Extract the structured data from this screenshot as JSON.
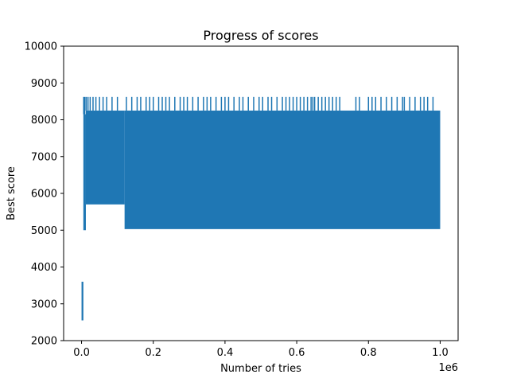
{
  "chart_data": {
    "type": "line",
    "title": "Progress of scores",
    "xlabel": "Number of tries",
    "ylabel": "Best score",
    "x_offset_label": "1e6",
    "xlim": [
      -0.05,
      1.05
    ],
    "ylim": [
      2000,
      10000
    ],
    "x_ticks": [
      0.0,
      0.2,
      0.4,
      0.6,
      0.8,
      1.0
    ],
    "x_tick_labels": [
      "0.0",
      "0.2",
      "0.4",
      "0.6",
      "0.8",
      "1.0"
    ],
    "y_ticks": [
      2000,
      3000,
      4000,
      5000,
      6000,
      7000,
      8000,
      9000,
      10000
    ],
    "y_tick_labels": [
      "2000",
      "3000",
      "4000",
      "5000",
      "6000",
      "7000",
      "8000",
      "9000",
      "10000"
    ],
    "grid": false,
    "series": [
      {
        "color": "#1f77b4",
        "envelope": [
          {
            "x0": 0.0,
            "x1": 0.005,
            "min": 2550,
            "max": 3600
          },
          {
            "x0": 0.005,
            "x1": 0.012,
            "min": 5000,
            "max": 8150
          },
          {
            "x0": 0.012,
            "x1": 0.12,
            "min": 5700,
            "max": 8250
          },
          {
            "x0": 0.12,
            "x1": 1.0,
            "min": 5030,
            "max": 8250
          }
        ],
        "spike_max": 8620,
        "spike_positions": [
          0.006,
          0.009,
          0.013,
          0.018,
          0.024,
          0.032,
          0.04,
          0.05,
          0.06,
          0.07,
          0.085,
          0.1,
          0.125,
          0.14,
          0.155,
          0.165,
          0.18,
          0.19,
          0.2,
          0.215,
          0.225,
          0.235,
          0.245,
          0.26,
          0.275,
          0.285,
          0.295,
          0.31,
          0.325,
          0.34,
          0.35,
          0.36,
          0.375,
          0.39,
          0.4,
          0.41,
          0.425,
          0.44,
          0.45,
          0.465,
          0.48,
          0.495,
          0.505,
          0.52,
          0.53,
          0.545,
          0.56,
          0.57,
          0.58,
          0.59,
          0.6,
          0.61,
          0.62,
          0.63,
          0.64,
          0.645,
          0.65,
          0.66,
          0.67,
          0.68,
          0.69,
          0.7,
          0.71,
          0.72,
          0.765,
          0.775,
          0.8,
          0.81,
          0.82,
          0.835,
          0.85,
          0.865,
          0.88,
          0.895,
          0.9,
          0.915,
          0.93,
          0.945,
          0.955,
          0.965,
          0.98
        ]
      }
    ]
  }
}
